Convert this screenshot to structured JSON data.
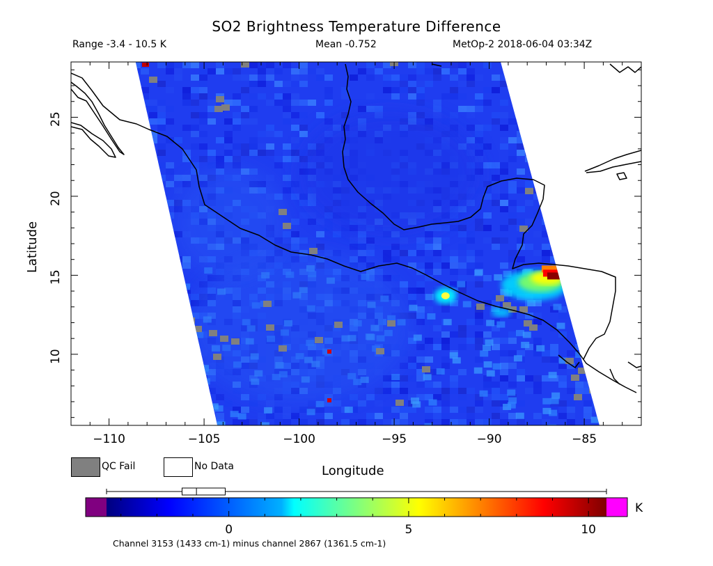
{
  "title": "SO2 Brightness Temperature Difference",
  "range_text": "Range -3.4 - 10.5 K",
  "mean_text": "Mean -0.752",
  "instrument_text": "MetOp-2 2018-06-04 03:34Z",
  "axes": {
    "xlabel": "Longitude",
    "ylabel": "Latitude",
    "xlim": [
      -112,
      -82
    ],
    "ylim": [
      5.5,
      28.5
    ],
    "xticks": [
      {
        "value": -110,
        "label": "−110"
      },
      {
        "value": -105,
        "label": "−105"
      },
      {
        "value": -100,
        "label": "−100"
      },
      {
        "value": -95,
        "label": "−95"
      },
      {
        "value": -90,
        "label": "−90"
      },
      {
        "value": -85,
        "label": "−85"
      }
    ],
    "yticks": [
      {
        "value": 10,
        "label": "10"
      },
      {
        "value": 15,
        "label": "15"
      },
      {
        "value": 20,
        "label": "20"
      },
      {
        "value": 25,
        "label": "25"
      }
    ]
  },
  "legend": {
    "qc_fail_label": "QC Fail",
    "qc_fail_color": "#808080",
    "no_data_label": "No Data",
    "no_data_color": "#ffffff"
  },
  "colorbar": {
    "range": [
      -3.4,
      10.5
    ],
    "under_color": "#800080",
    "over_color": "#ff00ff",
    "ticks": [
      {
        "value": 0,
        "label": "0"
      },
      {
        "value": 5,
        "label": "5"
      },
      {
        "value": 10,
        "label": "10"
      }
    ],
    "unit": "K",
    "caption": "Channel 3153 (1433 cm-1) minus channel 2867 (1361.5 cm-1)"
  },
  "boxplot": {
    "min": -3.4,
    "max": 10.5,
    "q1": -1.3,
    "median": -0.9,
    "q3": -0.1
  },
  "swath": {
    "west_edge": [
      [
        -108.6,
        28.5
      ],
      [
        -104.3,
        5.5
      ]
    ],
    "east_edge": [
      [
        -89.4,
        28.5
      ],
      [
        -84.2,
        5.5
      ]
    ]
  },
  "features": {
    "so2_plume": {
      "lon": -86.8,
      "lat": 15.0,
      "peak_value": 10.5
    },
    "secondary_plume": {
      "lon": -92.3,
      "lat": 13.7,
      "peak_value": 4.0
    }
  }
}
